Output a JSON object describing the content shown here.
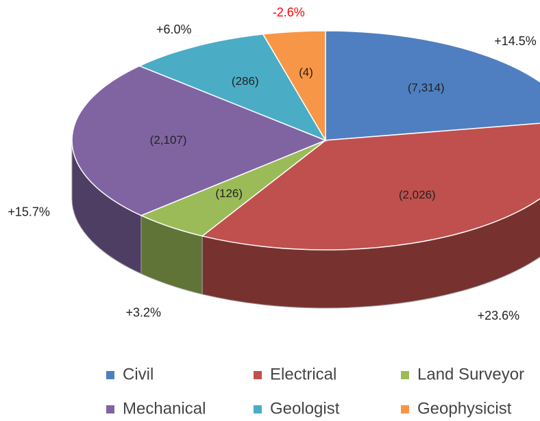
{
  "chart_data": {
    "type": "pie3d",
    "categories": [
      "Civil",
      "Electrical",
      "Land Surveyor",
      "Mechanical",
      "Geologist",
      "Geophysicist"
    ],
    "values": [
      7314,
      2026,
      126,
      2107,
      286,
      4
    ],
    "value_labels": [
      "(7,314)",
      "(2,026)",
      "(126)",
      "(2,107)",
      "(286)",
      "(4)"
    ],
    "change": [
      14.5,
      23.6,
      3.2,
      15.7,
      6.0,
      -2.6
    ],
    "change_labels": [
      "+14.5%",
      "+23.6%",
      "+3.2%",
      "+15.7%",
      "+6.0%",
      "-2.6%"
    ],
    "colors": [
      "#4f7fc0",
      "#c0504d",
      "#9bbb59",
      "#8064a2",
      "#4bacc6",
      "#f79646"
    ],
    "negative_label_color": "#ff0000"
  }
}
